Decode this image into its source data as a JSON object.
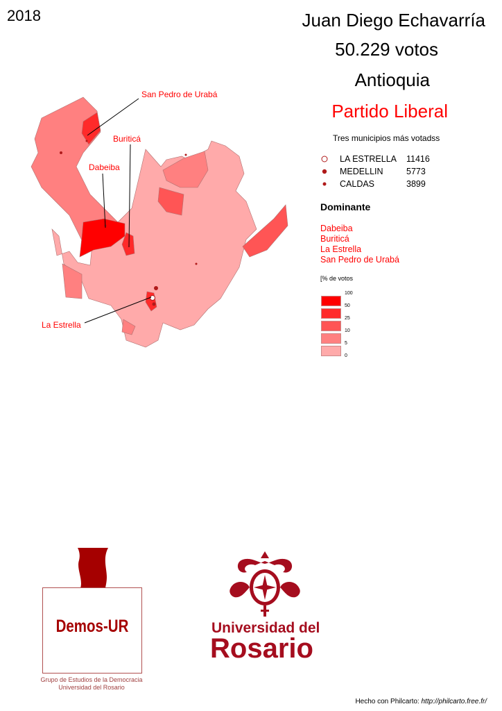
{
  "year": "2018",
  "candidate": "Juan Diego Echavarría",
  "votes": "50.229 votos",
  "department": "Antioquia",
  "party": "Partido Liberal",
  "top_municipalities": {
    "title": "Tres municipios más votadss",
    "items": [
      {
        "name": "LA ESTRELLA",
        "value": "11416",
        "symbol": "hollow-circle"
      },
      {
        "name": "MEDELLIN",
        "value": "5773",
        "symbol": "filled-circle"
      },
      {
        "name": "CALDAS",
        "value": "3899",
        "symbol": "small-filled-circle"
      }
    ]
  },
  "dominant": {
    "title": "Dominante",
    "items": [
      "Dabeiba",
      "Buriticá",
      "La Estrella",
      "San Pedro de Urabá"
    ]
  },
  "legend": {
    "title": "[% de votos",
    "ticks": [
      "100",
      "50",
      "25",
      "10",
      "5",
      "0"
    ],
    "colors": [
      "#ff0000",
      "#ff2a2a",
      "#ff5555",
      "#ff8080",
      "#ffaaaa"
    ]
  },
  "map_labels": [
    "San Pedro de Urabá",
    "Buriticá",
    "Dabeiba",
    "La Estrella"
  ],
  "logos": {
    "demos": "Demos-UR",
    "demos_caption_1": "Grupo de Estudios de la Democracia",
    "demos_caption_2": "Universidad del Rosario",
    "ur_line1": "Universidad del",
    "ur_line2": "Rosario"
  },
  "credit": {
    "text": "Hecho con Philcarto:",
    "url": "http://philcarto.free.fr/"
  },
  "accent": "#ff0000",
  "logo_color": "#a50d1e"
}
